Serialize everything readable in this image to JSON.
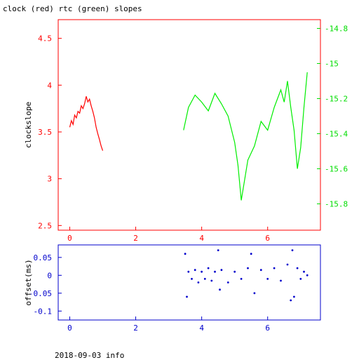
{
  "title": "clock (red) rtc (green) slopes",
  "footer": "2018-09-03 info",
  "chart_data": [
    {
      "type": "line",
      "ylabel": "clockslope",
      "xlim": [
        -0.35,
        7.6
      ],
      "x_ticks": [
        "0",
        "2",
        "4",
        "6"
      ],
      "left_axis": {
        "ylim": [
          2.45,
          4.7
        ],
        "ticks": [
          "2.5",
          "3",
          "3.5",
          "4",
          "4.5"
        ],
        "color": "#ff0000"
      },
      "right_axis": {
        "ylim": [
          -15.95,
          -14.75
        ],
        "ticks": [
          "-14.8",
          "-15",
          "-15.2",
          "-15.4",
          "-15.6",
          "-15.8"
        ],
        "color": "#00ee00"
      },
      "series": [
        {
          "color": "#ff0000",
          "x": [
            0.0,
            0.05,
            0.1,
            0.15,
            0.2,
            0.25,
            0.3,
            0.35,
            0.4,
            0.45,
            0.5,
            0.55,
            0.6,
            0.65,
            0.7,
            0.75,
            0.8,
            0.85,
            0.9,
            0.95,
            1.0
          ],
          "y": [
            3.55,
            3.62,
            3.58,
            3.68,
            3.65,
            3.72,
            3.7,
            3.78,
            3.75,
            3.8,
            3.88,
            3.82,
            3.85,
            3.78,
            3.72,
            3.65,
            3.55,
            3.48,
            3.42,
            3.35,
            3.3
          ]
        },
        {
          "color": "#00ee00",
          "x": [
            3.45,
            3.6,
            3.8,
            4.0,
            4.2,
            4.4,
            4.6,
            4.8,
            5.0,
            5.1,
            5.2,
            5.4,
            5.6,
            5.8,
            6.0,
            6.2,
            6.4,
            6.5,
            6.6,
            6.7,
            6.8,
            6.9,
            7.0,
            7.1,
            7.2
          ],
          "y": [
            -15.38,
            -15.25,
            -15.18,
            -15.22,
            -15.27,
            -15.17,
            -15.23,
            -15.3,
            -15.45,
            -15.58,
            -15.78,
            -15.55,
            -15.47,
            -15.33,
            -15.38,
            -15.25,
            -15.15,
            -15.22,
            -15.1,
            -15.25,
            -15.38,
            -15.6,
            -15.48,
            -15.25,
            -15.05
          ]
        }
      ]
    },
    {
      "type": "scatter",
      "ylabel": "offset(ms)",
      "xlim": [
        -0.35,
        7.6
      ],
      "ylim": [
        -0.125,
        0.085
      ],
      "x_ticks": [
        "0",
        "2",
        "4",
        "6"
      ],
      "y_ticks": [
        "0.05",
        "0",
        "-0.05",
        "-0.1"
      ],
      "color": "#0000cc",
      "x": [
        3.5,
        3.55,
        3.6,
        3.7,
        3.8,
        3.9,
        4.0,
        4.1,
        4.2,
        4.3,
        4.4,
        4.5,
        4.55,
        4.6,
        4.8,
        5.0,
        5.2,
        5.4,
        5.5,
        5.6,
        5.8,
        6.0,
        6.2,
        6.4,
        6.6,
        6.7,
        6.75,
        6.8,
        6.9,
        7.0,
        7.1,
        7.2
      ],
      "y": [
        0.06,
        -0.06,
        0.01,
        -0.01,
        0.015,
        -0.02,
        0.01,
        -0.01,
        0.02,
        -0.015,
        0.01,
        0.07,
        -0.04,
        0.015,
        -0.02,
        0.01,
        -0.01,
        0.02,
        0.06,
        -0.05,
        0.015,
        -0.01,
        0.02,
        -0.015,
        0.03,
        -0.07,
        0.07,
        -0.06,
        0.02,
        -0.01,
        0.01,
        0.0
      ]
    }
  ]
}
